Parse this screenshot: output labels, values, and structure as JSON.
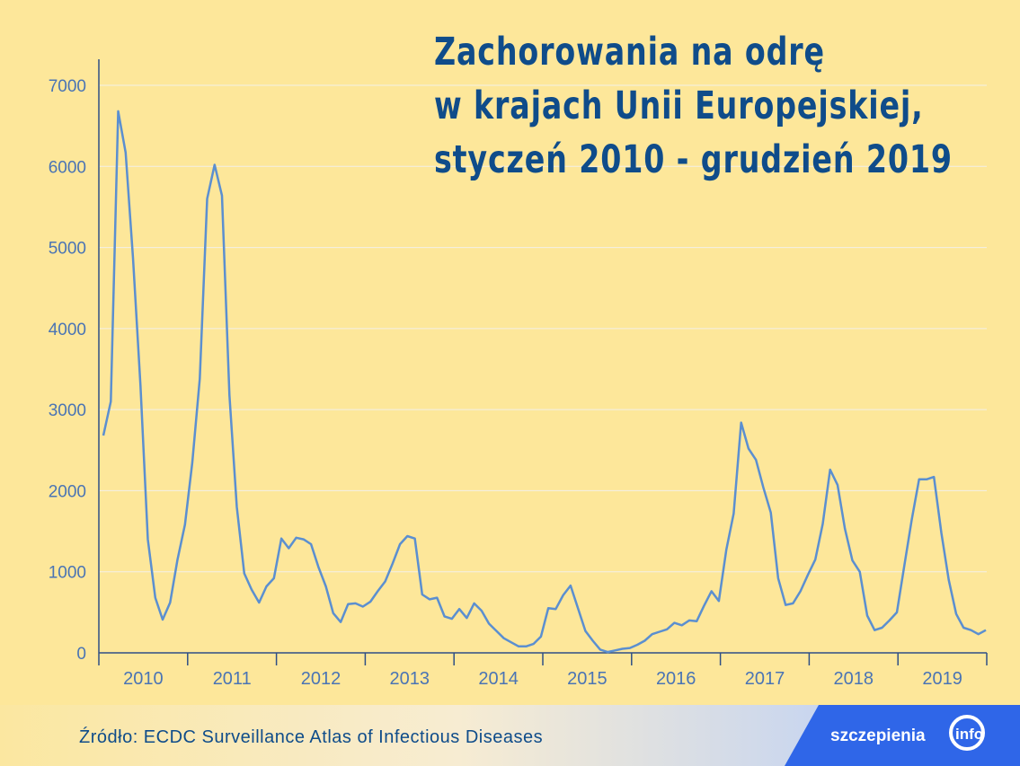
{
  "title_lines": [
    "Zachorowania na odrę",
    "w krajach Unii Europejskiej,",
    "styczeń 2010 - grudzień 2019"
  ],
  "source": "Źródło: ECDC Surveillance Atlas of Infectious Diseases",
  "brand": {
    "main": "szczepienia",
    "sub": "info"
  },
  "colors": {
    "background": "#fde79a",
    "line": "#5b8fd0",
    "title": "#0f4c8a",
    "brand": "#2f66e8"
  },
  "chart_data": {
    "type": "line",
    "title": "Zachorowania na odrę w krajach Unii Europejskiej, styczeń 2010 - grudzień 2019",
    "xlabel": "",
    "ylabel": "",
    "x_tick_labels": [
      "2010",
      "2011",
      "2012",
      "2013",
      "2014",
      "2015",
      "2016",
      "2017",
      "2018",
      "2019"
    ],
    "y_ticks": [
      0,
      1000,
      2000,
      3000,
      4000,
      5000,
      6000,
      7000
    ],
    "ylim": [
      0,
      7300
    ],
    "grid": true,
    "series": [
      {
        "name": "",
        "values": [
          2680,
          3100,
          6680,
          6170,
          4870,
          3300,
          1400,
          680,
          410,
          620,
          1150,
          1580,
          2350,
          3380,
          5600,
          6020,
          5640,
          3180,
          1800,
          980,
          780,
          620,
          820,
          920,
          1410,
          1290,
          1420,
          1400,
          1340,
          1060,
          820,
          490,
          380,
          600,
          610,
          570,
          630,
          760,
          880,
          1100,
          1340,
          1440,
          1410,
          720,
          660,
          680,
          450,
          420,
          540,
          430,
          610,
          520,
          360,
          270,
          180,
          130,
          80,
          80,
          110,
          200,
          550,
          540,
          710,
          830,
          550,
          270,
          150,
          40,
          10,
          30,
          50,
          60,
          100,
          150,
          230,
          260,
          290,
          370,
          340,
          400,
          390,
          580,
          760,
          640,
          1270,
          1720,
          2840,
          2520,
          2380,
          2040,
          1730,
          920,
          590,
          610,
          760,
          960,
          1150,
          1590,
          2260,
          2070,
          1530,
          1140,
          1000,
          460,
          280,
          310,
          400,
          500,
          1070,
          1640,
          2140,
          2140,
          2170,
          1480,
          900,
          480,
          310,
          280,
          230,
          280
        ]
      }
    ]
  }
}
